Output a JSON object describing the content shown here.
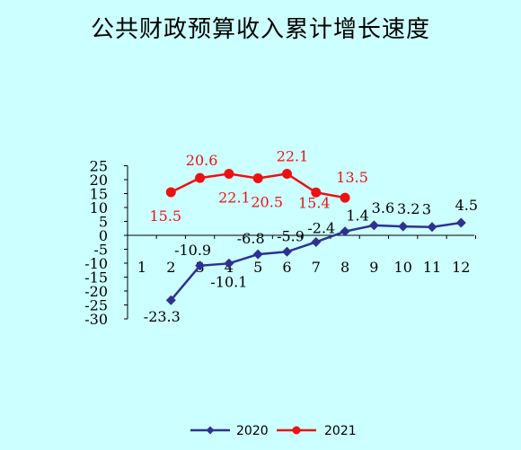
{
  "chart_data": {
    "type": "line",
    "title": "公共财政预算收入累计增长速度",
    "categories": [
      "1",
      "2",
      "3",
      "4",
      "5",
      "6",
      "7",
      "8",
      "9",
      "10",
      "11",
      "12"
    ],
    "ylim": [
      -30,
      25
    ],
    "yticks": [
      -30,
      -25,
      -20,
      -15,
      -10,
      -5,
      0,
      5,
      10,
      15,
      20,
      25
    ],
    "grid": false,
    "legend": "bottom",
    "series": [
      {
        "name": "2020",
        "color": "#2e3192",
        "marker": "diamond",
        "values": [
          null,
          -23.3,
          -10.9,
          -10.1,
          -6.8,
          -5.9,
          -2.4,
          1.4,
          3.6,
          3.2,
          3,
          4.5
        ],
        "labels": [
          null,
          "-23.3",
          "-10.9",
          "-10.1",
          "-6.8",
          "-5.9",
          "-2.4",
          "1.4",
          "3.6",
          "3.2",
          "3",
          "4.5"
        ]
      },
      {
        "name": "2021",
        "color": "#ee1111",
        "marker": "circle",
        "values": [
          null,
          15.5,
          20.6,
          22.1,
          20.5,
          22.1,
          15.4,
          13.5,
          null,
          null,
          null,
          null
        ],
        "labels": [
          null,
          "15.5",
          "20.6",
          "22.1",
          "20.5",
          "22.1",
          "15.4",
          "13.5",
          null,
          null,
          null,
          null
        ]
      }
    ]
  }
}
